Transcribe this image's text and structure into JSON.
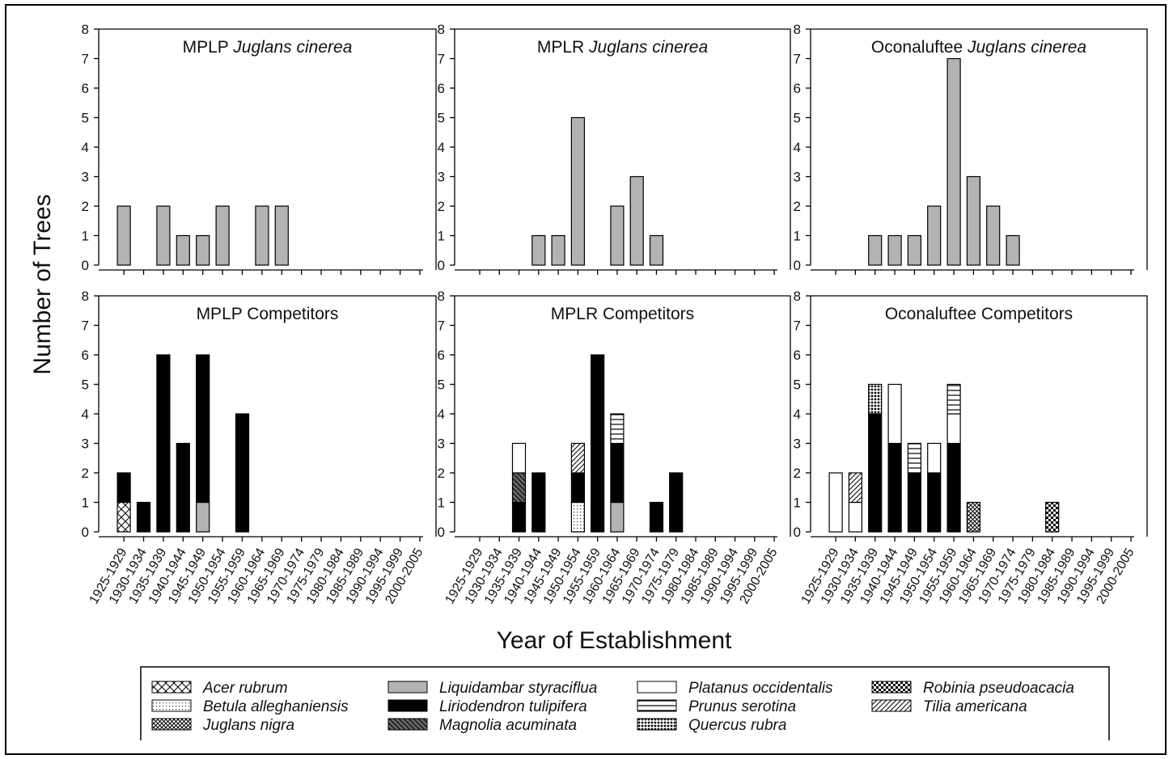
{
  "figure": {
    "ylabel": "Number of Trees",
    "xlabel": "Year of Establishment"
  },
  "patterns": {
    "Acer rubrum": "diagonal-cross",
    "Betula alleghaniensis": "fine-dots",
    "Juglans nigra": "dense-crosshatch",
    "Liquidambar styraciflua": "solid-gray",
    "Liriodendron tulipifera": "solid-black",
    "Magnolia acuminata": "dark-diagonal",
    "Platanus occidentalis": "white",
    "Prunus serotina": "horizontal-lines",
    "Quercus rubra": "dark-dots",
    "Robinia pseudoacacia": "checkerboard",
    "Tilia americana": "diagonal-lines"
  },
  "legend": {
    "columns": [
      [
        "Acer rubrum",
        "Betula alleghaniensis",
        "Juglans nigra"
      ],
      [
        "Liquidambar styraciflua",
        "Liriodendron tulipifera",
        "Magnolia acuminata"
      ],
      [
        "Platanus occidentalis",
        "Prunus serotina",
        "Quercus rubra"
      ],
      [
        "Robinia pseudoacacia",
        "Tilia americana"
      ]
    ]
  },
  "chart_data": [
    {
      "type": "bar",
      "title_parts": [
        {
          "t": "MPLP "
        },
        {
          "t": "Juglans cinerea",
          "italic": true
        }
      ],
      "categories": [
        "1925-1929",
        "1930-1934",
        "1935-1939",
        "1940-1944",
        "1945-1949",
        "1950-1954",
        "1955-1959",
        "1960-1964",
        "1965-1969",
        "1970-1974",
        "1975-1979",
        "1980-1984",
        "1985-1989",
        "1990-1994",
        "1995-1999",
        "2000-2005"
      ],
      "ylim": [
        0,
        8
      ],
      "show_x_tick_labels": false,
      "series": [
        {
          "name": "Juglans cinerea",
          "color": "#b3b3b3",
          "values": [
            2,
            0,
            2,
            1,
            1,
            2,
            0,
            2,
            2,
            0,
            0,
            0,
            0,
            0,
            0,
            0
          ]
        }
      ]
    },
    {
      "type": "bar",
      "title_parts": [
        {
          "t": "MPLR "
        },
        {
          "t": "Juglans cinerea",
          "italic": true
        }
      ],
      "categories": [
        "1925-1929",
        "1930-1934",
        "1935-1939",
        "1940-1944",
        "1945-1949",
        "1950-1954",
        "1955-1959",
        "1960-1964",
        "1965-1969",
        "1970-1974",
        "1975-1979",
        "1980-1984",
        "1985-1989",
        "1990-1994",
        "1995-1999",
        "2000-2005"
      ],
      "ylim": [
        0,
        8
      ],
      "show_x_tick_labels": false,
      "series": [
        {
          "name": "Juglans cinerea",
          "color": "#b3b3b3",
          "values": [
            0,
            0,
            0,
            1,
            1,
            5,
            0,
            2,
            3,
            1,
            0,
            0,
            0,
            0,
            0,
            0
          ]
        }
      ]
    },
    {
      "type": "bar",
      "title_parts": [
        {
          "t": "Oconaluftee "
        },
        {
          "t": "Juglans cinerea",
          "italic": true
        }
      ],
      "categories": [
        "1925-1929",
        "1930-1934",
        "1935-1939",
        "1940-1944",
        "1945-1949",
        "1950-1954",
        "1955-1959",
        "1960-1964",
        "1965-1969",
        "1970-1974",
        "1975-1979",
        "1980-1984",
        "1985-1989",
        "1990-1994",
        "1995-1999",
        "2000-2005"
      ],
      "ylim": [
        0,
        8
      ],
      "show_x_tick_labels": false,
      "series": [
        {
          "name": "Juglans cinerea",
          "color": "#b3b3b3",
          "values": [
            0,
            0,
            1,
            1,
            1,
            2,
            7,
            3,
            2,
            1,
            0,
            0,
            0,
            0,
            0,
            0
          ]
        }
      ]
    },
    {
      "type": "bar",
      "stacked": true,
      "title_parts": [
        {
          "t": "MPLP Competitors"
        }
      ],
      "categories": [
        "1925-1929",
        "1930-1934",
        "1935-1939",
        "1940-1944",
        "1945-1949",
        "1950-1954",
        "1955-1959",
        "1960-1964",
        "1965-1969",
        "1970-1974",
        "1975-1979",
        "1980-1984",
        "1985-1989",
        "1990-1994",
        "1995-1999",
        "2000-2005"
      ],
      "ylim": [
        0,
        8
      ],
      "show_x_tick_labels": true,
      "series": [
        {
          "name": "Acer rubrum",
          "values": [
            1,
            0,
            0,
            0,
            0,
            0,
            0,
            0,
            0,
            0,
            0,
            0,
            0,
            0,
            0,
            0
          ]
        },
        {
          "name": "Liquidambar styraciflua",
          "values": [
            0,
            0,
            0,
            0,
            1,
            0,
            0,
            0,
            0,
            0,
            0,
            0,
            0,
            0,
            0,
            0
          ]
        },
        {
          "name": "Liriodendron tulipifera",
          "values": [
            1,
            1,
            6,
            3,
            5,
            0,
            4,
            0,
            0,
            0,
            0,
            0,
            0,
            0,
            0,
            0
          ]
        }
      ]
    },
    {
      "type": "bar",
      "stacked": true,
      "title_parts": [
        {
          "t": "MPLR Competitors"
        }
      ],
      "categories": [
        "1925-1929",
        "1930-1934",
        "1935-1939",
        "1940-1944",
        "1945-1949",
        "1950-1954",
        "1955-1959",
        "1960-1964",
        "1965-1969",
        "1970-1974",
        "1975-1979",
        "1980-1984",
        "1985-1989",
        "1990-1994",
        "1995-1999",
        "2000-2005"
      ],
      "ylim": [
        0,
        8
      ],
      "show_x_tick_labels": true,
      "series": [
        {
          "name": "Betula alleghaniensis",
          "values": [
            0,
            0,
            0,
            0,
            0,
            1,
            0,
            0,
            0,
            0,
            0,
            0,
            0,
            0,
            0,
            0
          ]
        },
        {
          "name": "Liquidambar styraciflua",
          "values": [
            0,
            0,
            0,
            0,
            0,
            0,
            0,
            1,
            0,
            0,
            0,
            0,
            0,
            0,
            0,
            0
          ]
        },
        {
          "name": "Liriodendron tulipifera",
          "values": [
            0,
            0,
            1,
            2,
            0,
            1,
            6,
            2,
            0,
            1,
            2,
            0,
            0,
            0,
            0,
            0
          ]
        },
        {
          "name": "Magnolia acuminata",
          "values": [
            0,
            0,
            1,
            0,
            0,
            0,
            0,
            0,
            0,
            0,
            0,
            0,
            0,
            0,
            0,
            0
          ]
        },
        {
          "name": "Platanus occidentalis",
          "values": [
            0,
            0,
            1,
            0,
            0,
            0,
            0,
            0,
            0,
            0,
            0,
            0,
            0,
            0,
            0,
            0
          ]
        },
        {
          "name": "Prunus serotina",
          "values": [
            0,
            0,
            0,
            0,
            0,
            0,
            0,
            1,
            0,
            0,
            0,
            0,
            0,
            0,
            0,
            0
          ]
        },
        {
          "name": "Tilia americana",
          "values": [
            0,
            0,
            0,
            0,
            0,
            1,
            0,
            0,
            0,
            0,
            0,
            0,
            0,
            0,
            0,
            0
          ]
        }
      ]
    },
    {
      "type": "bar",
      "stacked": true,
      "title_parts": [
        {
          "t": "Oconaluftee Competitors"
        }
      ],
      "categories": [
        "1925-1929",
        "1930-1934",
        "1935-1939",
        "1940-1944",
        "1945-1949",
        "1950-1954",
        "1955-1959",
        "1960-1964",
        "1965-1969",
        "1970-1974",
        "1975-1979",
        "1980-1984",
        "1985-1989",
        "1990-1994",
        "1995-1999",
        "2000-2005"
      ],
      "ylim": [
        0,
        8
      ],
      "show_x_tick_labels": true,
      "series": [
        {
          "name": "Juglans nigra",
          "values": [
            0,
            0,
            0,
            0,
            0,
            0,
            0,
            1,
            0,
            0,
            0,
            0,
            0,
            0,
            0,
            0
          ]
        },
        {
          "name": "Liriodendron tulipifera",
          "values": [
            0,
            0,
            4,
            3,
            2,
            2,
            3,
            0,
            0,
            0,
            0,
            0,
            0,
            0,
            0,
            0
          ]
        },
        {
          "name": "Platanus occidentalis",
          "values": [
            2,
            1,
            0,
            2,
            0,
            1,
            1,
            0,
            0,
            0,
            0,
            0,
            0,
            0,
            0,
            0
          ]
        },
        {
          "name": "Prunus serotina",
          "values": [
            0,
            0,
            0,
            0,
            1,
            0,
            1,
            0,
            0,
            0,
            0,
            0,
            0,
            0,
            0,
            0
          ]
        },
        {
          "name": "Quercus rubra",
          "values": [
            0,
            0,
            1,
            0,
            0,
            0,
            0,
            0,
            0,
            0,
            0,
            0,
            0,
            0,
            0,
            0
          ]
        },
        {
          "name": "Robinia pseudoacacia",
          "values": [
            0,
            0,
            0,
            0,
            0,
            0,
            0,
            0,
            0,
            0,
            0,
            1,
            0,
            0,
            0,
            0
          ]
        },
        {
          "name": "Tilia americana",
          "values": [
            0,
            1,
            0,
            0,
            0,
            0,
            0,
            0,
            0,
            0,
            0,
            0,
            0,
            0,
            0,
            0
          ]
        }
      ]
    }
  ]
}
